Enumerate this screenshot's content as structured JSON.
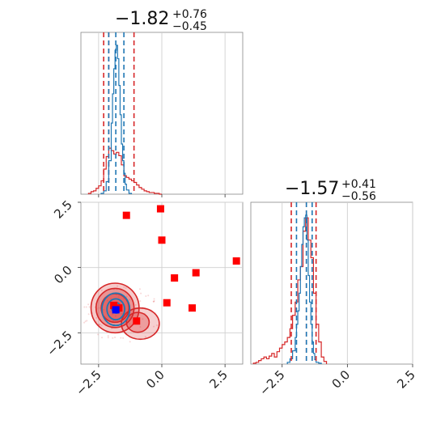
{
  "colors": {
    "red": "#d62728",
    "blue": "#1f77b4",
    "marker_red": "#ff0000",
    "marker_blue": "#0000ff",
    "grid": "#cfcfcf"
  },
  "titles": {
    "x": {
      "main": "−1.82",
      "plus": "+0.76",
      "minus": "−0.45"
    },
    "y": {
      "main": "−1.57",
      "plus": "+0.41",
      "minus": "−0.56"
    }
  },
  "chart_data": {
    "type": "corner",
    "ticks": [
      {
        "value": -2.5,
        "label": "−2.5"
      },
      {
        "value": 0.0,
        "label": "0.0"
      },
      {
        "value": 2.5,
        "label": "2.5"
      }
    ],
    "x_range": [
      -3.2,
      3.2
    ],
    "y_range": [
      -3.7,
      2.5
    ],
    "grid": true,
    "x_marginal": {
      "red_quantiles": [
        -2.3,
        -2.1,
        -1.1
      ],
      "blue_quantiles": [
        -2.1,
        -1.82,
        -1.5
      ],
      "red_hist": {
        "bins": [
          -2.9,
          -2.8,
          -2.7,
          -2.6,
          -2.5,
          -2.4,
          -2.3,
          -2.2,
          -2.1,
          -2.0,
          -1.9,
          -1.8,
          -1.7,
          -1.6,
          -1.5,
          -1.4,
          -1.3,
          -1.2,
          -1.1,
          -1.0,
          -0.9,
          -0.8,
          -0.7,
          -0.6,
          -0.5,
          -0.4,
          -0.3,
          -0.2,
          -0.1,
          0.0
        ],
        "counts": [
          1,
          3,
          4,
          7,
          10,
          16,
          30,
          45,
          55,
          52,
          48,
          50,
          46,
          35,
          22,
          20,
          18,
          16,
          14,
          11,
          8,
          6,
          4,
          3,
          2,
          2,
          1,
          1,
          0
        ]
      },
      "blue_hist": {
        "bins": [
          -2.4,
          -2.3,
          -2.2,
          -2.1,
          -2.0,
          -1.95,
          -1.9,
          -1.85,
          -1.8,
          -1.75,
          -1.7,
          -1.65,
          -1.6,
          -1.55,
          -1.5,
          -1.45,
          -1.4,
          -1.3,
          -1.2
        ],
        "counts": [
          1,
          4,
          15,
          40,
          85,
          120,
          150,
          172,
          178,
          162,
          130,
          95,
          60,
          40,
          25,
          12,
          5,
          1
        ]
      }
    },
    "y_marginal": {
      "red_quantiles": [
        -2.15,
        -1.57,
        -1.2
      ],
      "blue_quantiles": [
        -1.95,
        -1.57,
        -1.35
      ],
      "red_hist": {
        "bins": [
          -3.6,
          -3.5,
          -3.4,
          -3.3,
          -3.2,
          -3.1,
          -3.0,
          -2.9,
          -2.8,
          -2.7,
          -2.6,
          -2.5,
          -2.4,
          -2.3,
          -2.2,
          -2.1,
          -2.0,
          -1.9,
          -1.8,
          -1.7,
          -1.6,
          -1.5,
          -1.4,
          -1.3,
          -1.2,
          -1.1,
          -1.0,
          -0.9,
          -0.8
        ],
        "counts": [
          1,
          2,
          4,
          6,
          8,
          6,
          9,
          12,
          8,
          14,
          18,
          22,
          25,
          30,
          40,
          55,
          70,
          95,
          110,
          150,
          165,
          140,
          120,
          80,
          45,
          25,
          8,
          3
        ]
      },
      "blue_hist": {
        "bins": [
          -2.3,
          -2.2,
          -2.1,
          -2.0,
          -1.95,
          -1.9,
          -1.85,
          -1.8,
          -1.75,
          -1.7,
          -1.65,
          -1.6,
          -1.55,
          -1.5,
          -1.45,
          -1.4,
          -1.35,
          -1.3,
          -1.25,
          -1.2,
          -1.1,
          -1.0
        ],
        "counts": [
          2,
          6,
          15,
          30,
          45,
          60,
          80,
          110,
          135,
          155,
          165,
          168,
          140,
          100,
          70,
          45,
          25,
          12,
          5,
          2,
          1
        ]
      }
    },
    "scatter_red_markers": [
      {
        "x": -1.4,
        "y": 2.0
      },
      {
        "x": -0.05,
        "y": 2.25
      },
      {
        "x": 0.0,
        "y": 1.05
      },
      {
        "x": 2.95,
        "y": 0.25
      },
      {
        "x": 1.35,
        "y": -0.2
      },
      {
        "x": 0.5,
        "y": -0.4
      },
      {
        "x": 0.2,
        "y": -1.35
      },
      {
        "x": 1.2,
        "y": -1.55
      },
      {
        "x": -1.0,
        "y": -2.05
      },
      {
        "x": -1.9,
        "y": -1.45
      },
      {
        "x": -1.7,
        "y": -1.55
      }
    ],
    "scatter_blue_marker": {
      "x": -1.82,
      "y": -1.62
    },
    "red_contours": [
      {
        "cx": -1.85,
        "cy": -1.55,
        "rx": 0.95,
        "ry": 0.95,
        "opacity": 0.45
      },
      {
        "cx": -1.85,
        "cy": -1.55,
        "rx": 0.75,
        "ry": 0.75,
        "opacity": 0.6
      },
      {
        "cx": -1.85,
        "cy": -1.55,
        "rx": 0.55,
        "ry": 0.55,
        "opacity": 0.75
      },
      {
        "cx": -0.85,
        "cy": -2.15,
        "rx": 0.75,
        "ry": 0.6,
        "opacity": 0.4
      },
      {
        "cx": -0.95,
        "cy": -2.1,
        "rx": 0.45,
        "ry": 0.38,
        "opacity": 0.55
      }
    ],
    "blue_contours": [
      {
        "cx": -1.82,
        "cy": -1.6,
        "rx": 0.55,
        "ry": 0.62
      },
      {
        "cx": -1.82,
        "cy": -1.6,
        "rx": 0.35,
        "ry": 0.4
      },
      {
        "cx": -1.8,
        "cy": -1.55,
        "rx": 0.18,
        "ry": 0.2
      }
    ]
  }
}
